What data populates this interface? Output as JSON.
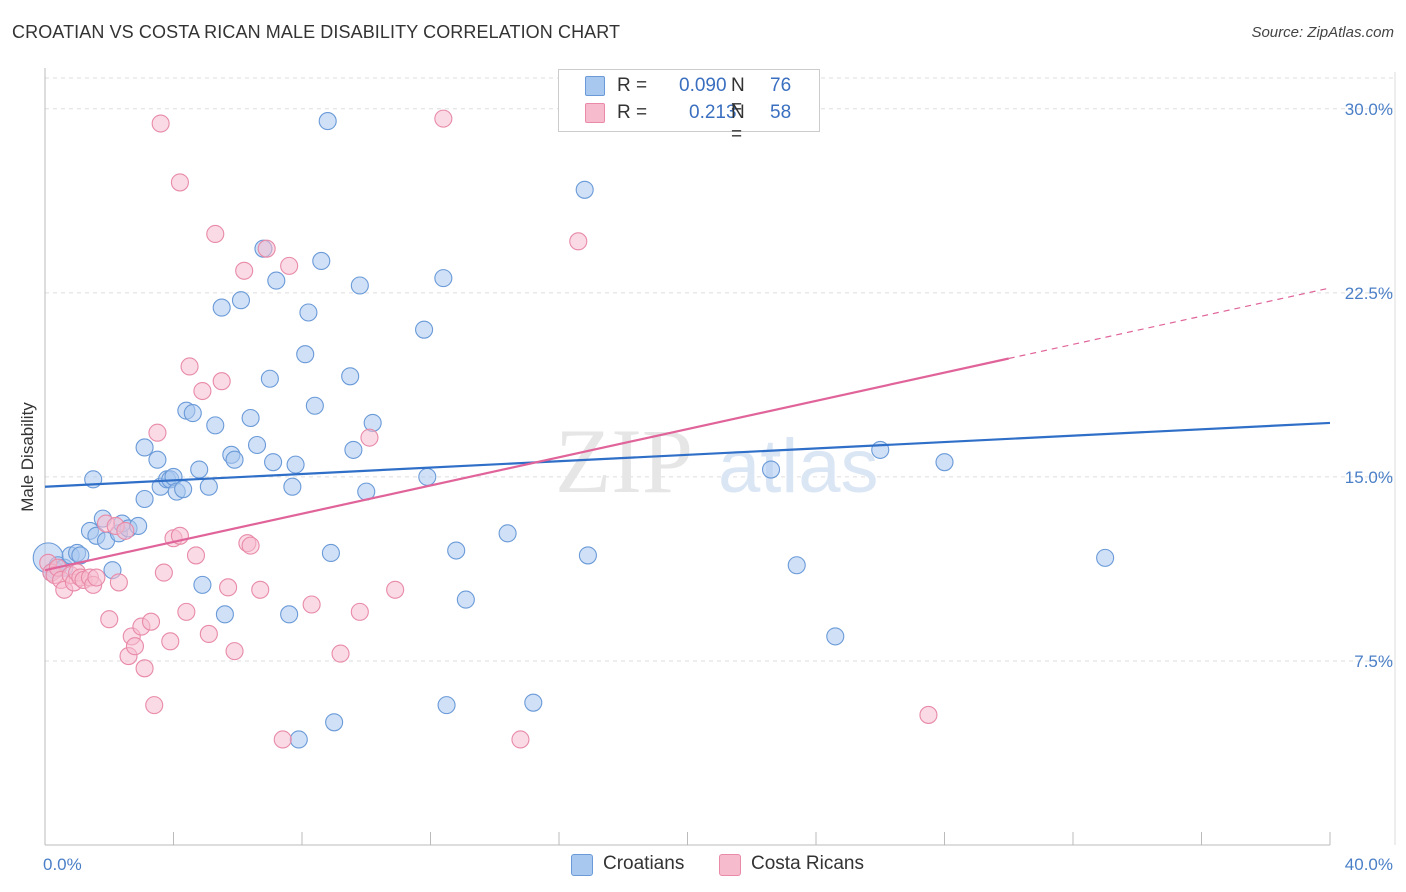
{
  "title": "CROATIAN VS COSTA RICAN MALE DISABILITY CORRELATION CHART",
  "source": "Source: ZipAtlas.com",
  "watermark": {
    "zip": "ZIP",
    "atlas": "atlas"
  },
  "colors": {
    "croatians_fill": "#a9c8f0",
    "croatians_stroke": "#6a9ad8",
    "croatians_line": "#2f6fc8",
    "costaricans_fill": "#f6bccd",
    "costaricans_stroke": "#e88aa8",
    "costaricans_line": "#e0649a",
    "tick_text": "#4a7fc7",
    "grid": "#dddddd"
  },
  "legend": {
    "rows": [
      {
        "r_label": "R =",
        "r_value": "0.090",
        "n_label": "N =",
        "n_value": "76"
      },
      {
        "r_label": "R =",
        "r_value": "0.213",
        "n_label": "N =",
        "n_value": "58"
      }
    ]
  },
  "bottom_legend": {
    "croatians": "Croatians",
    "costaricans": "Costa Ricans"
  },
  "chart_data": {
    "type": "scatter",
    "title": "CROATIAN VS COSTA RICAN MALE DISABILITY CORRELATION CHART",
    "xlabel": "",
    "ylabel": "Male Disability",
    "xlim": [
      0,
      40
    ],
    "ylim": [
      0,
      31.5
    ],
    "x_tick_labels": [
      "0.0%",
      "40.0%"
    ],
    "y_ticks": [
      7.5,
      15.0,
      22.5,
      30.0
    ],
    "y_tick_labels": [
      "7.5%",
      "15.0%",
      "22.5%",
      "30.0%"
    ],
    "series": [
      {
        "name": "Croatians",
        "r": 0.09,
        "n": 76,
        "trend": {
          "x0": 0,
          "y0": 14.6,
          "x1": 40,
          "y1": 17.2,
          "dashed_from": null
        },
        "points": [
          [
            0.1,
            11.7
          ],
          [
            0.3,
            11.2
          ],
          [
            0.4,
            11.4
          ],
          [
            0.6,
            11.3
          ],
          [
            0.8,
            11.8
          ],
          [
            1.0,
            11.9
          ],
          [
            1.1,
            11.8
          ],
          [
            1.4,
            12.8
          ],
          [
            1.5,
            14.9
          ],
          [
            1.6,
            12.6
          ],
          [
            1.8,
            13.3
          ],
          [
            1.9,
            12.4
          ],
          [
            2.1,
            11.2
          ],
          [
            2.3,
            12.7
          ],
          [
            2.4,
            13.1
          ],
          [
            2.6,
            12.9
          ],
          [
            2.9,
            13.0
          ],
          [
            3.1,
            16.2
          ],
          [
            3.1,
            14.1
          ],
          [
            3.5,
            15.7
          ],
          [
            3.6,
            14.6
          ],
          [
            3.8,
            14.9
          ],
          [
            3.9,
            14.9
          ],
          [
            4.0,
            15.0
          ],
          [
            4.1,
            14.4
          ],
          [
            4.3,
            14.5
          ],
          [
            4.4,
            17.7
          ],
          [
            4.6,
            17.6
          ],
          [
            4.8,
            15.3
          ],
          [
            4.9,
            10.6
          ],
          [
            5.1,
            14.6
          ],
          [
            5.3,
            17.1
          ],
          [
            5.5,
            21.9
          ],
          [
            5.6,
            9.4
          ],
          [
            5.8,
            15.9
          ],
          [
            5.9,
            15.7
          ],
          [
            6.1,
            22.2
          ],
          [
            6.4,
            17.4
          ],
          [
            6.6,
            16.3
          ],
          [
            6.8,
            24.3
          ],
          [
            7.0,
            19.0
          ],
          [
            7.1,
            15.6
          ],
          [
            7.2,
            23.0
          ],
          [
            7.6,
            9.4
          ],
          [
            7.7,
            14.6
          ],
          [
            7.8,
            15.5
          ],
          [
            7.9,
            4.3
          ],
          [
            8.1,
            20.0
          ],
          [
            8.2,
            21.7
          ],
          [
            8.4,
            17.9
          ],
          [
            8.6,
            23.8
          ],
          [
            8.8,
            29.5
          ],
          [
            8.9,
            11.9
          ],
          [
            9.0,
            5.0
          ],
          [
            9.5,
            19.1
          ],
          [
            9.6,
            16.1
          ],
          [
            9.8,
            22.8
          ],
          [
            10.0,
            14.4
          ],
          [
            10.2,
            17.2
          ],
          [
            11.8,
            21.0
          ],
          [
            11.9,
            15.0
          ],
          [
            12.4,
            23.1
          ],
          [
            12.8,
            12.0
          ],
          [
            13.1,
            10.0
          ],
          [
            12.5,
            5.7
          ],
          [
            14.4,
            12.7
          ],
          [
            15.2,
            5.8
          ],
          [
            16.8,
            26.7
          ],
          [
            16.9,
            11.8
          ],
          [
            22.6,
            15.3
          ],
          [
            23.4,
            11.4
          ],
          [
            24.6,
            8.5
          ],
          [
            26.0,
            16.1
          ],
          [
            28.0,
            15.6
          ],
          [
            33.0,
            11.7
          ],
          [
            0.2,
            11.1
          ]
        ]
      },
      {
        "name": "Costa Ricans",
        "r": 0.213,
        "n": 58,
        "trend": {
          "x0": 0,
          "y0": 11.2,
          "x1": 40,
          "y1": 22.7,
          "dashed_from": 30.0
        },
        "points": [
          [
            0.1,
            11.5
          ],
          [
            0.2,
            11.1
          ],
          [
            0.3,
            11.0
          ],
          [
            0.4,
            11.3
          ],
          [
            0.5,
            10.8
          ],
          [
            0.6,
            10.4
          ],
          [
            0.8,
            11.0
          ],
          [
            0.9,
            10.7
          ],
          [
            1.0,
            11.1
          ],
          [
            1.1,
            10.9
          ],
          [
            1.2,
            10.8
          ],
          [
            1.4,
            10.9
          ],
          [
            1.5,
            10.6
          ],
          [
            1.6,
            10.9
          ],
          [
            1.9,
            13.1
          ],
          [
            2.0,
            9.2
          ],
          [
            2.2,
            13.0
          ],
          [
            2.3,
            10.7
          ],
          [
            2.5,
            12.8
          ],
          [
            2.6,
            7.7
          ],
          [
            2.7,
            8.5
          ],
          [
            2.8,
            8.1
          ],
          [
            3.0,
            8.9
          ],
          [
            3.1,
            7.2
          ],
          [
            3.3,
            9.1
          ],
          [
            3.4,
            5.7
          ],
          [
            3.5,
            16.8
          ],
          [
            3.6,
            29.4
          ],
          [
            3.7,
            11.1
          ],
          [
            3.9,
            8.3
          ],
          [
            4.0,
            12.5
          ],
          [
            4.2,
            12.6
          ],
          [
            4.2,
            27.0
          ],
          [
            4.4,
            9.5
          ],
          [
            4.5,
            19.5
          ],
          [
            4.7,
            11.8
          ],
          [
            4.9,
            18.5
          ],
          [
            5.1,
            8.6
          ],
          [
            5.3,
            24.9
          ],
          [
            5.5,
            18.9
          ],
          [
            5.7,
            10.5
          ],
          [
            5.9,
            7.9
          ],
          [
            6.2,
            23.4
          ],
          [
            6.3,
            12.3
          ],
          [
            6.4,
            12.2
          ],
          [
            6.7,
            10.4
          ],
          [
            6.9,
            24.3
          ],
          [
            7.4,
            4.3
          ],
          [
            7.6,
            23.6
          ],
          [
            8.3,
            9.8
          ],
          [
            9.2,
            7.8
          ],
          [
            9.8,
            9.5
          ],
          [
            10.1,
            16.6
          ],
          [
            10.9,
            10.4
          ],
          [
            12.4,
            29.6
          ],
          [
            14.8,
            4.3
          ],
          [
            16.6,
            24.6
          ],
          [
            27.5,
            5.3
          ]
        ]
      }
    ]
  }
}
